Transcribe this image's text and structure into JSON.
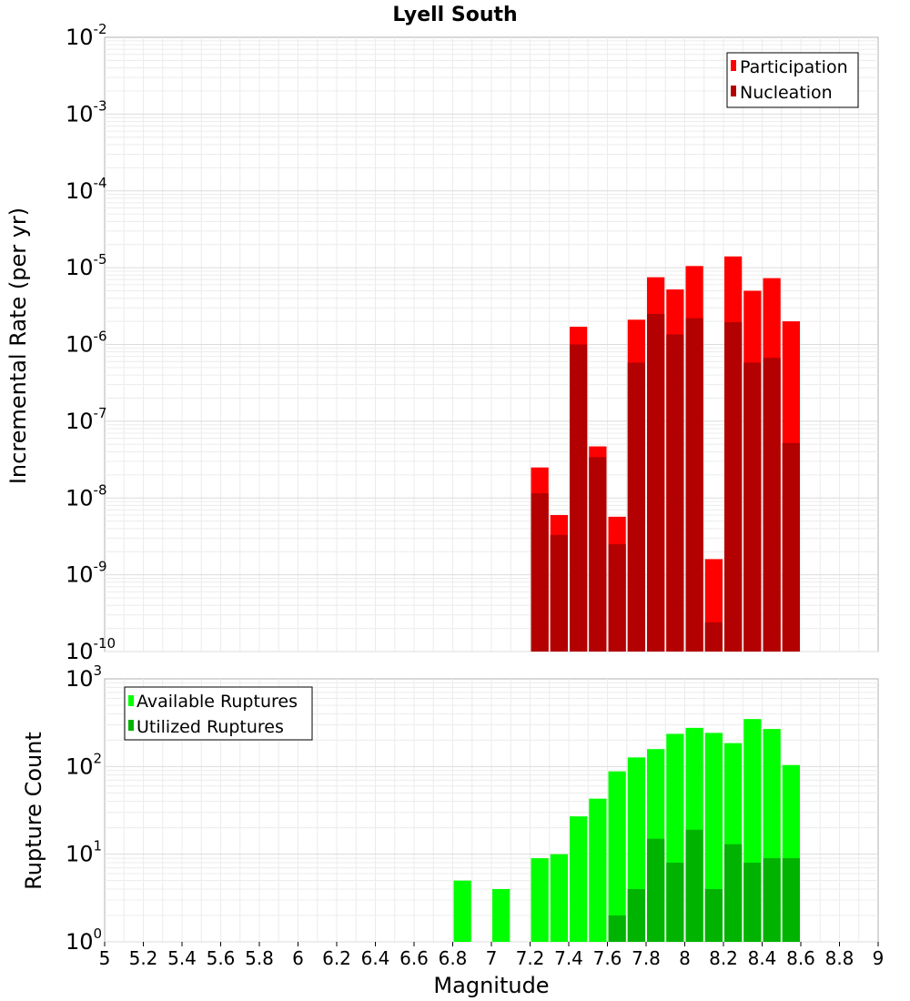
{
  "chart_data": [
    {
      "type": "bar",
      "title": "Lyell South",
      "ylabel": "Incremental Rate (per yr)",
      "yscale": "log",
      "ylim_exp": [
        -10,
        -2
      ],
      "xlim": [
        5,
        9
      ],
      "bin_width": 0.1,
      "grid": true,
      "legend_position": "top-right",
      "x": [
        7.25,
        7.35,
        7.45,
        7.55,
        7.65,
        7.75,
        7.85,
        7.95,
        8.05,
        8.15,
        8.25,
        8.35,
        8.45,
        8.55
      ],
      "series": [
        {
          "name": "Participation",
          "color": "#ff0000",
          "values": [
            2.5e-08,
            6e-09,
            1.7e-06,
            4.7e-08,
            5.7e-09,
            2.1e-06,
            7.5e-06,
            5.2e-06,
            1.05e-05,
            1.6e-09,
            1.4e-05,
            5e-06,
            7.3e-06,
            2e-06
          ]
        },
        {
          "name": "Nucleation",
          "color": "#b30000",
          "values": [
            1.15e-08,
            3.3e-09,
            1e-06,
            3.4e-08,
            2.5e-09,
            5.8e-07,
            2.5e-06,
            1.35e-06,
            2.2e-06,
            2.4e-10,
            1.95e-06,
            5.8e-07,
            6.7e-07,
            5.2e-08
          ]
        }
      ]
    },
    {
      "type": "bar",
      "xlabel": "Magnitude",
      "ylabel": "Rupture Count",
      "yscale": "log",
      "ylim_exp": [
        0,
        3
      ],
      "xlim": [
        5,
        9
      ],
      "bin_width": 0.1,
      "grid": true,
      "legend_position": "top-left",
      "x_ticks": [
        "5",
        "5.2",
        "5.4",
        "5.6",
        "5.8",
        "6",
        "6.2",
        "6.4",
        "6.6",
        "6.8",
        "7",
        "7.2",
        "7.4",
        "7.6",
        "7.8",
        "8",
        "8.2",
        "8.4",
        "8.6",
        "8.8",
        "9"
      ],
      "x": [
        6.85,
        7.05,
        7.15,
        7.25,
        7.35,
        7.45,
        7.55,
        7.65,
        7.75,
        7.85,
        7.95,
        8.05,
        8.15,
        8.25,
        8.35,
        8.45,
        8.55
      ],
      "series": [
        {
          "name": "Available Ruptures",
          "color": "#00ff00",
          "values": [
            5,
            4,
            1,
            9,
            10,
            27,
            43,
            88,
            127,
            158,
            236,
            276,
            242,
            185,
            348,
            268,
            104
          ]
        },
        {
          "name": "Utilized Ruptures",
          "color": "#00b300",
          "values": [
            0,
            0,
            0,
            1,
            1,
            1,
            1,
            2,
            4,
            15,
            8,
            19,
            4,
            13,
            8,
            9,
            9
          ]
        }
      ]
    }
  ]
}
